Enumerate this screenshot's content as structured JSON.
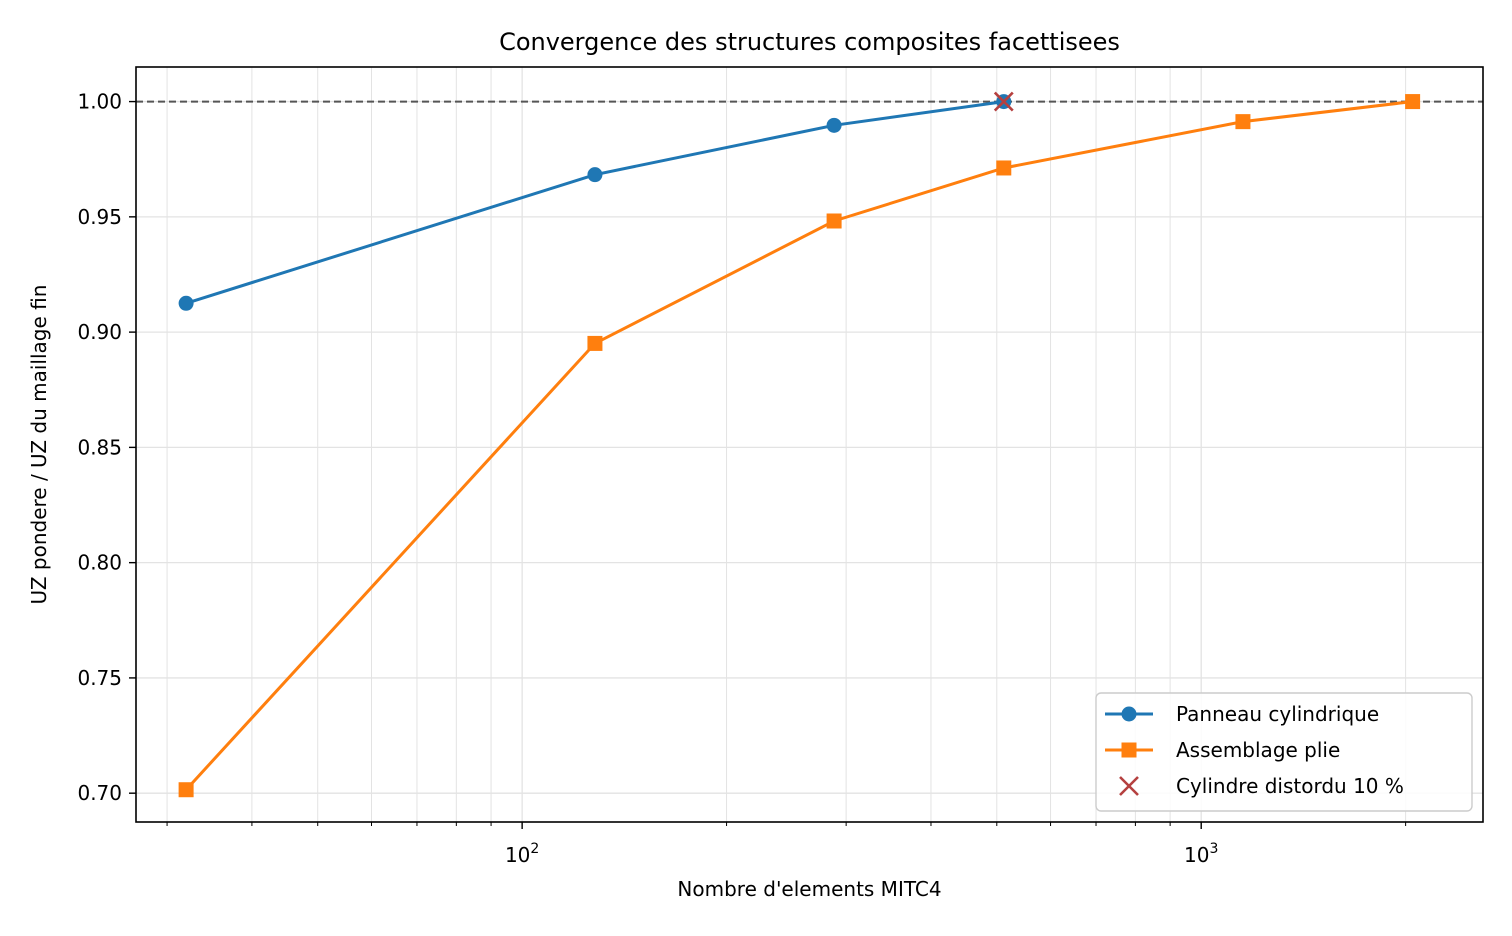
{
  "chart_data": {
    "type": "line",
    "title": "Convergence des structures composites facettisees",
    "xlabel": "Nombre d'elements MITC4",
    "ylabel": "UZ pondere / UZ du maillage fin",
    "xscale": "log",
    "xlim": [
      27,
      2600
    ],
    "ylim": [
      0.6875,
      1.015
    ],
    "xticks": [
      {
        "value": 100,
        "base": "10",
        "exp": "2"
      },
      {
        "value": 1000,
        "base": "10",
        "exp": "3"
      }
    ],
    "yticks": [
      "0.70",
      "0.75",
      "0.80",
      "0.85",
      "0.90",
      "0.95",
      "1.00"
    ],
    "grid": true,
    "legend_position": "lower right",
    "reference_line": {
      "y": 1.0,
      "style": "dashed",
      "color": "#555555"
    },
    "series": [
      {
        "name": "Panneau cylindrique",
        "color": "#1f77b4",
        "marker": "circle",
        "x": [
          32,
          128,
          288,
          512
        ],
        "y": [
          0.9125,
          0.9683,
          0.9897,
          1.0
        ]
      },
      {
        "name": "Assemblage plie",
        "color": "#ff7f0e",
        "marker": "square",
        "x": [
          32,
          128,
          288,
          512,
          1152,
          2048
        ],
        "y": [
          0.7015,
          0.8951,
          0.9482,
          0.9712,
          0.9913,
          1.0
        ]
      },
      {
        "name": "Cylindre distordu 10 %",
        "color": "#b5403f",
        "marker": "x",
        "type": "scatter",
        "x": [
          512
        ],
        "y": [
          1.0
        ]
      }
    ]
  }
}
